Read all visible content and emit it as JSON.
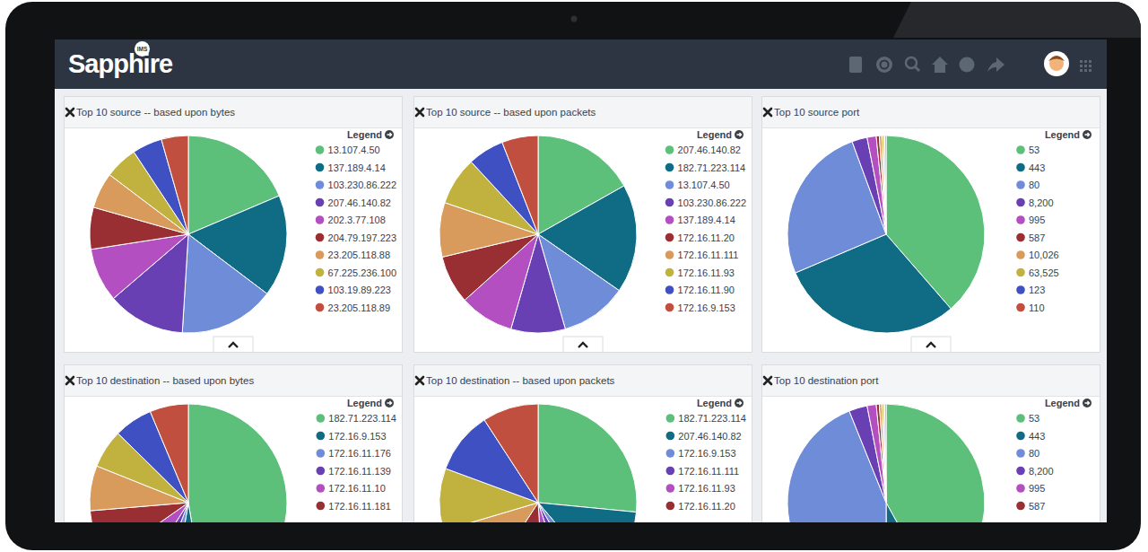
{
  "ui": {
    "brand": "Sapphire",
    "badge": "IMS",
    "legend_heading": "Legend"
  },
  "chart_data": [
    {
      "type": "pie",
      "title": "Top 10 source -- based upon bytes",
      "categories": [
        "13.107.4.50",
        "137.189.4.14",
        "103.230.86.222",
        "207.46.140.82",
        "202.3.77.108",
        "204.79.197.223",
        "23.205.118.88",
        "67.225.236.100",
        "103.19.89.223",
        "23.205.118.89"
      ],
      "values": [
        19,
        17,
        16,
        13,
        9,
        7,
        6,
        5.5,
        5,
        4.5
      ],
      "colors": [
        "#5cc07b",
        "#106b84",
        "#6f8cd9",
        "#6840b4",
        "#b44fc2",
        "#9a2f33",
        "#d99b5c",
        "#c1b240",
        "#3f50c2",
        "#c04f3f"
      ],
      "legend": "right"
    },
    {
      "type": "pie",
      "title": "Top 10 source -- based upon packets",
      "categories": [
        "207.46.140.82",
        "182.71.223.114",
        "13.107.4.50",
        "103.230.86.222",
        "137.189.4.14",
        "172.16.11.20",
        "172.16.11.111",
        "172.16.11.93",
        "172.16.11.90",
        "172.16.9.153"
      ],
      "values": [
        17,
        18,
        11,
        9,
        9,
        8,
        9,
        8,
        6,
        6
      ],
      "colors": [
        "#5cc07b",
        "#106b84",
        "#6f8cd9",
        "#6840b4",
        "#b44fc2",
        "#9a2f33",
        "#d99b5c",
        "#c1b240",
        "#3f50c2",
        "#c04f3f"
      ],
      "legend": "right"
    },
    {
      "type": "pie",
      "title": "Top 10 source port",
      "categories": [
        "53",
        "443",
        "80",
        "8,200",
        "995",
        "587",
        "10,026",
        "63,525",
        "123",
        "110"
      ],
      "values": [
        38.6,
        30,
        25.8,
        2.5,
        1.5,
        0.5,
        0.4,
        0.3,
        0.2,
        0.2
      ],
      "colors": [
        "#5cc07b",
        "#106b84",
        "#6f8cd9",
        "#6840b4",
        "#b44fc2",
        "#9a2f33",
        "#d99b5c",
        "#c1b240",
        "#3f50c2",
        "#c04f3f"
      ],
      "legend": "right"
    },
    {
      "type": "pie",
      "title": "Top 10 destination -- based upon bytes",
      "categories": [
        "182.71.223.114",
        "172.16.9.153",
        "172.16.11.176",
        "172.16.11.139",
        "172.16.11.10",
        "172.16.11.181",
        null,
        null,
        null,
        null
      ],
      "values": [
        45,
        5,
        3,
        3,
        6,
        8,
        7,
        6,
        6,
        6
      ],
      "colors": [
        "#5cc07b",
        "#106b84",
        "#6f8cd9",
        "#6840b4",
        "#b44fc2",
        "#9a2f33",
        "#d99b5c",
        "#c1b240",
        "#3f50c2",
        "#c04f3f"
      ],
      "legend": "right"
    },
    {
      "type": "pie",
      "title": "Top 10 destination -- based upon packets",
      "categories": [
        "182.71.223.114",
        "207.46.140.82",
        "172.16.9.153",
        "172.16.11.111",
        "172.16.11.93",
        "172.16.11.20",
        null,
        null,
        null,
        null
      ],
      "values": [
        26,
        12,
        3,
        3,
        4,
        10,
        11,
        10,
        10,
        9
      ],
      "colors": [
        "#5cc07b",
        "#106b84",
        "#6f8cd9",
        "#6840b4",
        "#b44fc2",
        "#9a2f33",
        "#d99b5c",
        "#c1b240",
        "#3f50c2",
        "#c04f3f"
      ],
      "legend": "right"
    },
    {
      "type": "pie",
      "title": "Top 10 destination port",
      "categories": [
        "53",
        "443",
        "80",
        "8,200",
        "995",
        "587",
        null,
        null,
        null,
        null
      ],
      "values": [
        42,
        8,
        44,
        3,
        1.5,
        0.5,
        0.4,
        0.3,
        0.2,
        0.2
      ],
      "colors": [
        "#5cc07b",
        "#106b84",
        "#6f8cd9",
        "#6840b4",
        "#b44fc2",
        "#9a2f33",
        "#d99b5c",
        "#c1b240",
        "#3f50c2",
        "#c04f3f"
      ],
      "legend": "right"
    }
  ]
}
